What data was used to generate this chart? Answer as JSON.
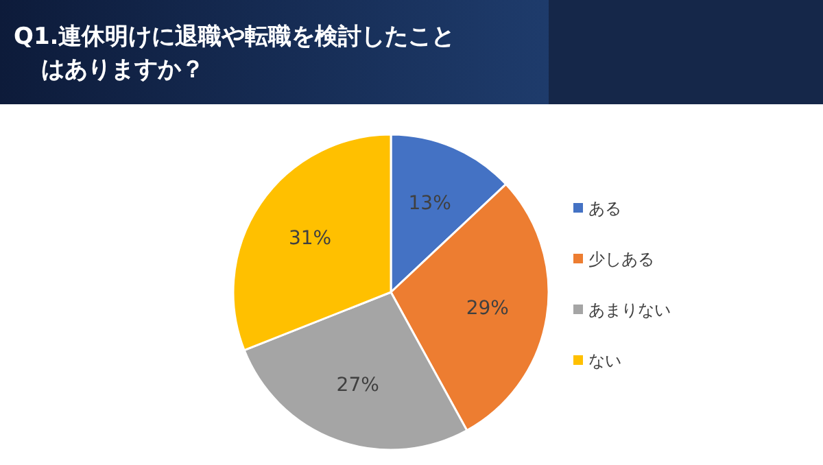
{
  "chart_data": {
    "type": "pie",
    "title": "Q1.連休明けに退職や転職を検討したことはありますか？",
    "categories": [
      "ある",
      "少しある",
      "あまりない",
      "ない"
    ],
    "values": [
      13,
      29,
      27,
      31
    ],
    "colors": [
      "#4472c4",
      "#ed7d31",
      "#a5a5a5",
      "#ffc000"
    ],
    "value_labels": [
      "13%",
      "29%",
      "27%",
      "31%"
    ],
    "legend": "right"
  }
}
